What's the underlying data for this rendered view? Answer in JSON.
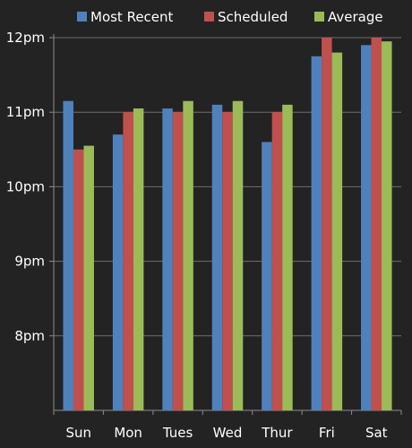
{
  "chart_data": {
    "type": "bar",
    "categories": [
      "Sun",
      "Mon",
      "Tues",
      "Wed",
      "Thur",
      "Fri",
      "Sat"
    ],
    "series": [
      {
        "name": "Most Recent",
        "color": "#4f81bd",
        "values": [
          23.15,
          22.7,
          23.05,
          23.1,
          22.6,
          23.75,
          23.9
        ]
      },
      {
        "name": "Scheduled",
        "color": "#c0504d",
        "values": [
          22.5,
          23.0,
          23.0,
          23.0,
          23.0,
          24.0,
          24.0
        ]
      },
      {
        "name": "Average",
        "color": "#9bbb59",
        "values": [
          22.55,
          23.05,
          23.15,
          23.15,
          23.1,
          23.8,
          23.95
        ]
      }
    ],
    "y_ticks": [
      {
        "value": 20,
        "label": "8pm"
      },
      {
        "value": 21,
        "label": "9pm"
      },
      {
        "value": 22,
        "label": "10pm"
      },
      {
        "value": 23,
        "label": "11pm"
      },
      {
        "value": 24,
        "label": "12pm"
      }
    ],
    "ylim": [
      19,
      24
    ],
    "title": "",
    "xlabel": "",
    "ylabel": "",
    "grid": true,
    "legend_position": "top",
    "colors": {
      "background": "#232323",
      "text": "#ffffff",
      "axis": "#8c8c8c",
      "grid": "#6e6e6e"
    }
  }
}
